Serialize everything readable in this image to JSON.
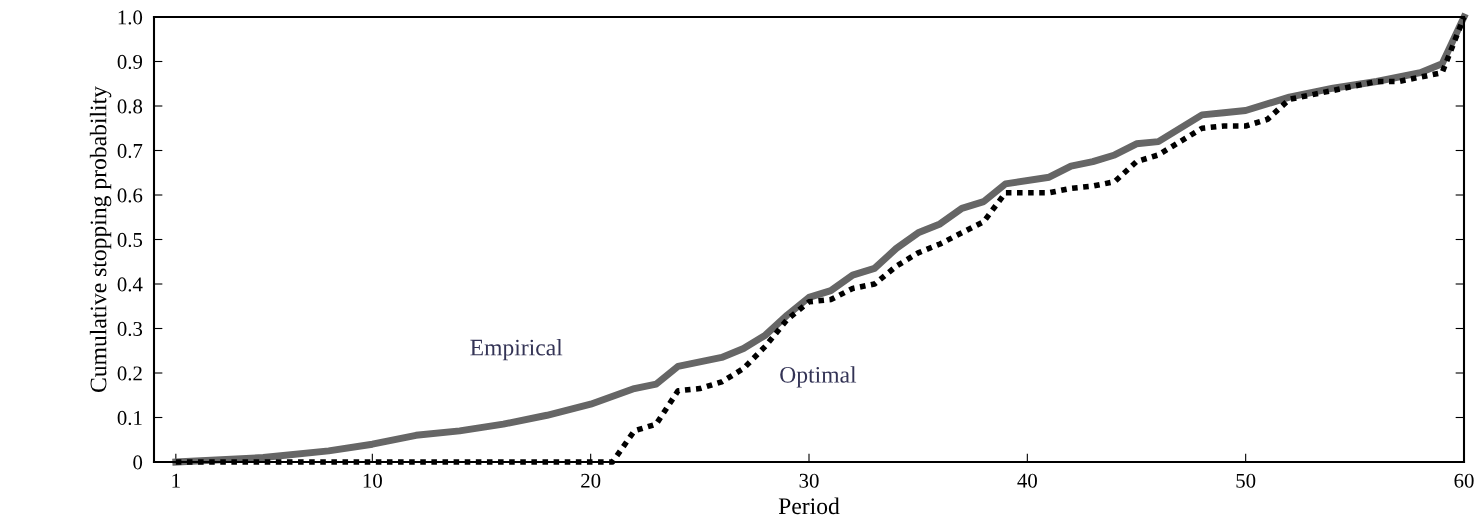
{
  "chart_data": {
    "type": "line",
    "xlabel": "Period",
    "ylabel": "Cumulative stopping probability",
    "xlim": [
      0,
      60
    ],
    "xticks": [
      1,
      10,
      20,
      30,
      40,
      50,
      60
    ],
    "ylim": [
      0,
      1.0
    ],
    "yticks": [
      {
        "value": 0,
        "label": "0"
      },
      0.1,
      0.2,
      0.3,
      0.4,
      0.5,
      0.6,
      0.7,
      0.8,
      0.9,
      {
        "value": 1.0,
        "label": "1.0"
      }
    ],
    "grid": false,
    "legend": false,
    "series": [
      {
        "name": "Empirical",
        "color": "#666666",
        "line_style": "solid",
        "x": [
          1,
          5,
          8,
          10,
          12,
          14,
          16,
          18,
          20,
          22,
          23,
          24,
          26,
          27,
          28,
          29,
          30,
          31,
          32,
          33,
          34,
          35,
          36,
          37,
          38,
          39,
          41,
          42,
          43,
          44,
          45,
          46,
          48,
          49,
          50,
          52,
          54,
          56,
          58,
          59,
          60
        ],
        "values": [
          0,
          0.01,
          0.025,
          0.04,
          0.06,
          0.07,
          0.085,
          0.105,
          0.13,
          0.165,
          0.175,
          0.215,
          0.235,
          0.255,
          0.285,
          0.33,
          0.37,
          0.385,
          0.42,
          0.435,
          0.48,
          0.515,
          0.535,
          0.57,
          0.585,
          0.625,
          0.64,
          0.665,
          0.675,
          0.69,
          0.715,
          0.72,
          0.78,
          0.785,
          0.79,
          0.82,
          0.84,
          0.855,
          0.875,
          0.895,
          1.0
        ]
      },
      {
        "name": "Optimal",
        "color": "#000000",
        "line_style": "dotted",
        "x": [
          1,
          20,
          21,
          22,
          23,
          24,
          25,
          26,
          27,
          28,
          29,
          30,
          31,
          32,
          33,
          34,
          35,
          36,
          37,
          38,
          39,
          41,
          42,
          43,
          44,
          45,
          46,
          47,
          48,
          49,
          50,
          51,
          52,
          53,
          54,
          55,
          56,
          57,
          58,
          59,
          60
        ],
        "values": [
          0,
          0,
          0,
          0.07,
          0.085,
          0.16,
          0.165,
          0.18,
          0.21,
          0.26,
          0.32,
          0.36,
          0.365,
          0.39,
          0.4,
          0.44,
          0.47,
          0.49,
          0.515,
          0.54,
          0.605,
          0.605,
          0.615,
          0.62,
          0.63,
          0.675,
          0.69,
          0.72,
          0.75,
          0.755,
          0.755,
          0.77,
          0.815,
          0.825,
          0.835,
          0.845,
          0.855,
          0.855,
          0.865,
          0.875,
          1.0
        ]
      }
    ]
  }
}
